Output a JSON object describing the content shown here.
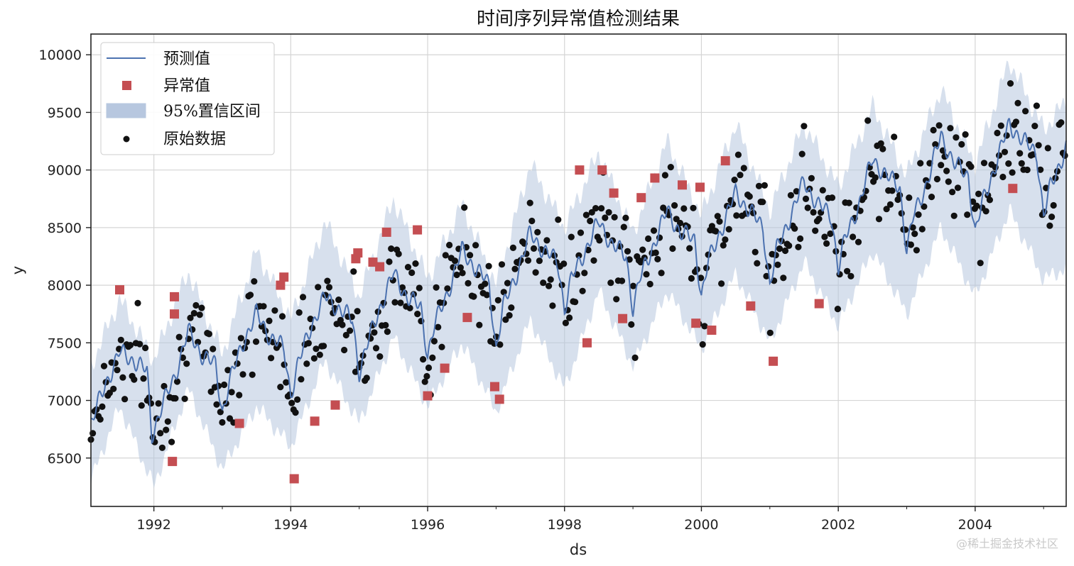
{
  "chart_data": {
    "type": "scatter",
    "title": "时间序列异常值检测结果",
    "xlabel": "ds",
    "ylabel": "y",
    "xlim": [
      1991.08,
      2005.33
    ],
    "ylim": [
      6080,
      10180
    ],
    "grid": true,
    "x_ticks": [
      1992,
      1994,
      1996,
      1998,
      2000,
      2002,
      2004
    ],
    "x_minor_ticks": [
      1993,
      1995,
      1997,
      1999,
      2001,
      2003,
      2005
    ],
    "y_ticks": [
      6500,
      7000,
      7500,
      8000,
      8500,
      9000,
      9500,
      10000
    ],
    "legend_position": "upper-left",
    "legend": [
      {
        "key": "forecast",
        "label": "预测值"
      },
      {
        "key": "anomalies",
        "label": "异常值"
      },
      {
        "key": "interval",
        "label": "95%置信区间"
      },
      {
        "key": "raw",
        "label": "原始数据"
      }
    ],
    "colors": {
      "forecast": "#4c72b0",
      "interval": "#b7c7df",
      "anomaly": "#c44e52",
      "raw": "#111111",
      "grid": "#d5d5d5",
      "axis": "#222222"
    },
    "forecast": {
      "x": [
        1991.08,
        1991.3,
        1991.5,
        1991.7,
        1991.9,
        1991.97,
        1992.1,
        1992.3,
        1992.5,
        1992.7,
        1992.9,
        1993.0,
        1993.1,
        1993.3,
        1993.5,
        1993.7,
        1993.9,
        1994.0,
        1994.1,
        1994.3,
        1994.5,
        1994.7,
        1994.9,
        1995.0,
        1995.1,
        1995.3,
        1995.5,
        1995.7,
        1995.9,
        1996.0,
        1996.1,
        1996.3,
        1996.5,
        1996.7,
        1996.9,
        1997.0,
        1997.1,
        1997.3,
        1997.5,
        1997.7,
        1997.9,
        1998.0,
        1998.1,
        1998.3,
        1998.5,
        1998.7,
        1998.9,
        1999.0,
        1999.1,
        1999.3,
        1999.5,
        1999.7,
        1999.9,
        2000.0,
        2000.1,
        2000.3,
        2000.5,
        2000.7,
        2000.9,
        2001.0,
        2001.1,
        2001.3,
        2001.5,
        2001.7,
        2001.9,
        2002.0,
        2002.1,
        2002.3,
        2002.5,
        2002.7,
        2002.9,
        2003.0,
        2003.1,
        2003.3,
        2003.5,
        2003.7,
        2003.9,
        2004.0,
        2004.1,
        2004.3,
        2004.5,
        2004.7,
        2004.9,
        2005.0,
        2005.1,
        2005.33
      ],
      "y": [
        6800,
        7150,
        7420,
        7350,
        7250,
        6700,
        6920,
        7200,
        7600,
        7400,
        7300,
        6900,
        7150,
        7500,
        7750,
        7550,
        7450,
        7050,
        7300,
        7650,
        7900,
        7800,
        7700,
        7250,
        7450,
        7800,
        8100,
        7900,
        7800,
        7400,
        7650,
        7950,
        8300,
        8150,
        8000,
        7450,
        7800,
        8100,
        8450,
        8300,
        8200,
        7800,
        8050,
        8300,
        8550,
        8350,
        8250,
        7800,
        8050,
        8350,
        8650,
        8450,
        8400,
        7900,
        8200,
        8500,
        8800,
        8650,
        8500,
        8000,
        8300,
        8600,
        8900,
        8700,
        8600,
        8150,
        8400,
        8700,
        9100,
        8950,
        8850,
        8300,
        8600,
        8900,
        9300,
        9050,
        8950,
        8450,
        8700,
        9050,
        9400,
        9250,
        9150,
        8600,
        8850,
        9200
      ]
    },
    "interval": {
      "x": [
        1991.08,
        1991.5,
        1992.0,
        1992.5,
        1993.0,
        1993.5,
        1994.0,
        1994.5,
        1995.0,
        1995.5,
        1996.0,
        1996.5,
        1997.0,
        1997.5,
        1998.0,
        1998.5,
        1999.0,
        1999.5,
        2000.0,
        2000.5,
        2001.0,
        2001.5,
        2002.0,
        2002.5,
        2003.0,
        2003.5,
        2004.0,
        2004.5,
        2005.0,
        2005.33
      ],
      "lower": [
        6300,
        6950,
        6250,
        7100,
        6400,
        6950,
        6600,
        7350,
        6800,
        7550,
        6950,
        7500,
        6900,
        7700,
        7100,
        7950,
        7300,
        7950,
        7450,
        8100,
        7500,
        8200,
        7650,
        8300,
        7750,
        8500,
        7900,
        8650,
        8050,
        8150
      ],
      "upper": [
        7300,
        7880,
        7350,
        8120,
        7400,
        8300,
        7700,
        8550,
        7900,
        8750,
        8050,
        8700,
        8000,
        9050,
        8500,
        9150,
        8450,
        9250,
        8600,
        9400,
        8650,
        9400,
        8850,
        9550,
        8950,
        9700,
        9050,
        9950,
        9350,
        9600
      ]
    },
    "anomalies": {
      "x": [
        1991.5,
        1992.3,
        1992.3,
        1992.27,
        1993.25,
        1993.85,
        1993.9,
        1994.05,
        1994.35,
        1994.65,
        1994.95,
        1994.98,
        1995.2,
        1995.3,
        1995.4,
        1995.85,
        1996.0,
        1996.25,
        1996.58,
        1996.98,
        1997.05,
        1998.22,
        1998.33,
        1998.55,
        1998.72,
        1998.85,
        1999.12,
        1999.32,
        1999.72,
        1999.92,
        1999.98,
        2000.15,
        2000.35,
        2000.72,
        2001.05,
        2001.72,
        2004.55
      ],
      "y": [
        7960,
        7900,
        7750,
        6470,
        6800,
        8000,
        8070,
        6320,
        6820,
        6960,
        8230,
        8280,
        8200,
        8160,
        8460,
        8480,
        7040,
        7280,
        7720,
        7120,
        7010,
        9000,
        7500,
        9000,
        8800,
        7710,
        8760,
        8930,
        8870,
        7670,
        8850,
        7610,
        9080,
        7820,
        7340,
        7840,
        8840
      ]
    },
    "raw_points": 520
  }
}
